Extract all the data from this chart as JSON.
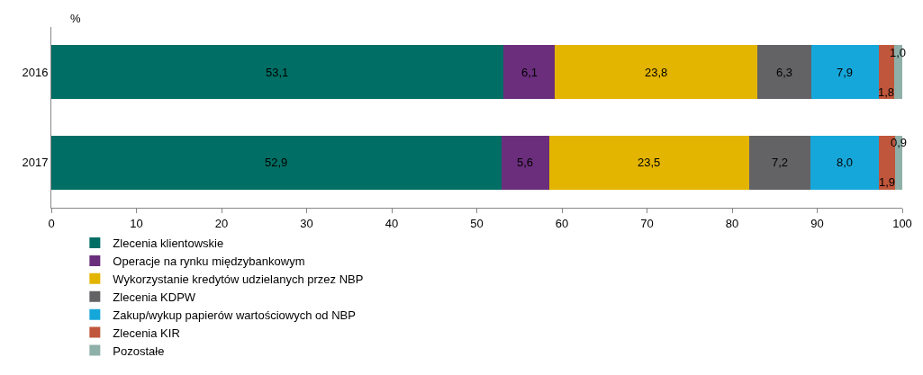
{
  "chart_data": {
    "type": "bar",
    "orientation": "horizontal",
    "stacked": true,
    "xlabel": "%",
    "categories": [
      "2016",
      "2017"
    ],
    "xlim": [
      0,
      100
    ],
    "xticks": [
      0,
      10,
      20,
      30,
      40,
      50,
      60,
      70,
      80,
      90,
      100
    ],
    "legend": "bottom",
    "series": [
      {
        "name": "Zlecenia klientowskie",
        "color": "#006e64",
        "values": [
          53.1,
          52.9
        ],
        "value_labels": [
          "53,1",
          "52,9"
        ]
      },
      {
        "name": "Operacje na rynku międzybankowym",
        "color": "#6b2e7c",
        "values": [
          6.1,
          5.6
        ],
        "value_labels": [
          "6,1",
          "5,6"
        ]
      },
      {
        "name": "Wykorzystanie kredytów udzielanych przez NBP",
        "color": "#e3b400",
        "values": [
          23.8,
          23.5
        ],
        "value_labels": [
          "23,8",
          "23,5"
        ]
      },
      {
        "name": "Zlecenia KDPW",
        "color": "#636366",
        "values": [
          6.3,
          7.2
        ],
        "value_labels": [
          "6,3",
          "7,2"
        ]
      },
      {
        "name": "Zakup/wykup papierów wartościowych od NBP",
        "color": "#16a7da",
        "values": [
          7.9,
          8.0
        ],
        "value_labels": [
          "7,9",
          "8,0"
        ]
      },
      {
        "name": "Zlecenia KIR",
        "color": "#c0563b",
        "values": [
          1.8,
          1.9
        ],
        "value_labels": [
          "1,8",
          "1,9"
        ]
      },
      {
        "name": "Pozostałe",
        "color": "#8fb0a8",
        "values": [
          1.0,
          0.9
        ],
        "value_labels": [
          "1,0",
          "0,9"
        ]
      }
    ]
  }
}
